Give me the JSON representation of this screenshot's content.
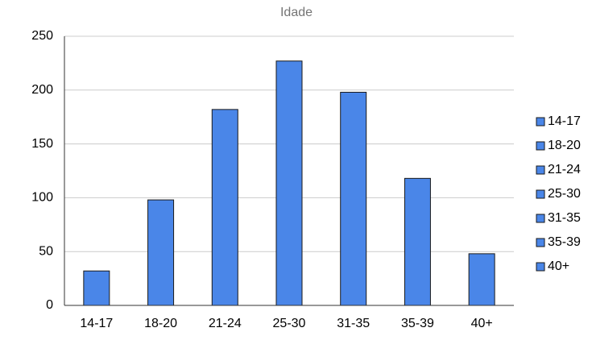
{
  "chart_data": {
    "type": "bar",
    "title": "Idade",
    "categories": [
      "14-17",
      "18-20",
      "21-24",
      "25-30",
      "31-35",
      "35-39",
      "40+"
    ],
    "values": [
      32,
      98,
      182,
      227,
      198,
      118,
      48
    ],
    "color": "#4a86e8",
    "ylim": [
      0,
      250
    ],
    "yticks": [
      0,
      50,
      100,
      150,
      200,
      250
    ],
    "grid": true,
    "legend": "right"
  }
}
